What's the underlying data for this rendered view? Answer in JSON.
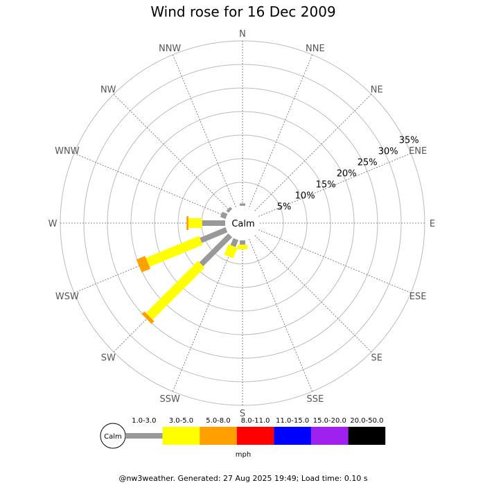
{
  "chart_data": {
    "type": "wind-rose",
    "title": "Wind rose for 16 Dec 2009",
    "calm_label": "Calm",
    "unit": "mph",
    "footer": "@nw3weather. Generated: 27 Aug 2025 19:49; Load time: 0.10 s",
    "directions": [
      "N",
      "NNE",
      "NE",
      "ENE",
      "E",
      "ESE",
      "SE",
      "SSE",
      "S",
      "SSW",
      "SW",
      "WSW",
      "W",
      "WNW",
      "NW",
      "NNW"
    ],
    "radial_ticks": [
      "5%",
      "10%",
      "15%",
      "20%",
      "25%",
      "30%",
      "35%"
    ],
    "radial_values": [
      5,
      10,
      15,
      20,
      25,
      30,
      35
    ],
    "rmax": 35,
    "speed_bins": [
      {
        "label": "1.0-3.0",
        "color": "#999999"
      },
      {
        "label": "3.0-5.0",
        "color": "#ffff00"
      },
      {
        "label": "5.0-8.0",
        "color": "#ff9f00"
      },
      {
        "label": "8.0-11.0",
        "color": "#ff0000"
      },
      {
        "label": "11.0-15.0",
        "color": "#0000ff"
      },
      {
        "label": "15.0-20.0",
        "color": "#a020f0"
      },
      {
        "label": "20.0-50.0",
        "color": "#000000"
      }
    ],
    "series_by_direction": [
      {
        "direction": "N",
        "cumulative": [
          0.5,
          0.5,
          0.5,
          0.5,
          0.5,
          0.5,
          0.5
        ]
      },
      {
        "direction": "NNE",
        "cumulative": [
          0,
          0,
          0,
          0,
          0,
          0,
          0
        ]
      },
      {
        "direction": "NE",
        "cumulative": [
          0,
          0,
          0,
          0,
          0,
          0,
          0
        ]
      },
      {
        "direction": "ENE",
        "cumulative": [
          0,
          0,
          0,
          0,
          0,
          0,
          0
        ]
      },
      {
        "direction": "E",
        "cumulative": [
          0,
          0,
          0,
          0,
          0,
          0,
          0
        ]
      },
      {
        "direction": "ESE",
        "cumulative": [
          0,
          0,
          0,
          0,
          0,
          0,
          0
        ]
      },
      {
        "direction": "SE",
        "cumulative": [
          0,
          0,
          0,
          0,
          0,
          0,
          0
        ]
      },
      {
        "direction": "SSE",
        "cumulative": [
          0,
          0,
          0,
          0,
          0,
          0,
          0
        ]
      },
      {
        "direction": "S",
        "cumulative": [
          0.9,
          1.9,
          1.9,
          1.9,
          1.9,
          1.9,
          1.9
        ]
      },
      {
        "direction": "SSW",
        "cumulative": [
          1.6,
          4.0,
          4.0,
          4.0,
          4.0,
          4.0,
          4.0
        ]
      },
      {
        "direction": "SW",
        "cumulative": [
          8.7,
          24.3,
          25.1,
          25.1,
          25.1,
          25.1,
          25.1
        ]
      },
      {
        "direction": "WSW",
        "cumulative": [
          5.9,
          18.1,
          20.1,
          20.1,
          20.1,
          20.1,
          20.1
        ]
      },
      {
        "direction": "W",
        "cumulative": [
          4.9,
          7.8,
          8.2,
          8.2,
          8.2,
          8.2,
          8.2
        ]
      },
      {
        "direction": "WNW",
        "cumulative": [
          1.2,
          1.2,
          1.2,
          1.2,
          1.2,
          1.2,
          1.2
        ]
      },
      {
        "direction": "NW",
        "cumulative": [
          0.6,
          0.6,
          0.6,
          0.6,
          0.6,
          0.6,
          0.6
        ]
      },
      {
        "direction": "NNW",
        "cumulative": [
          0,
          0,
          0,
          0,
          0,
          0,
          0
        ]
      }
    ]
  }
}
